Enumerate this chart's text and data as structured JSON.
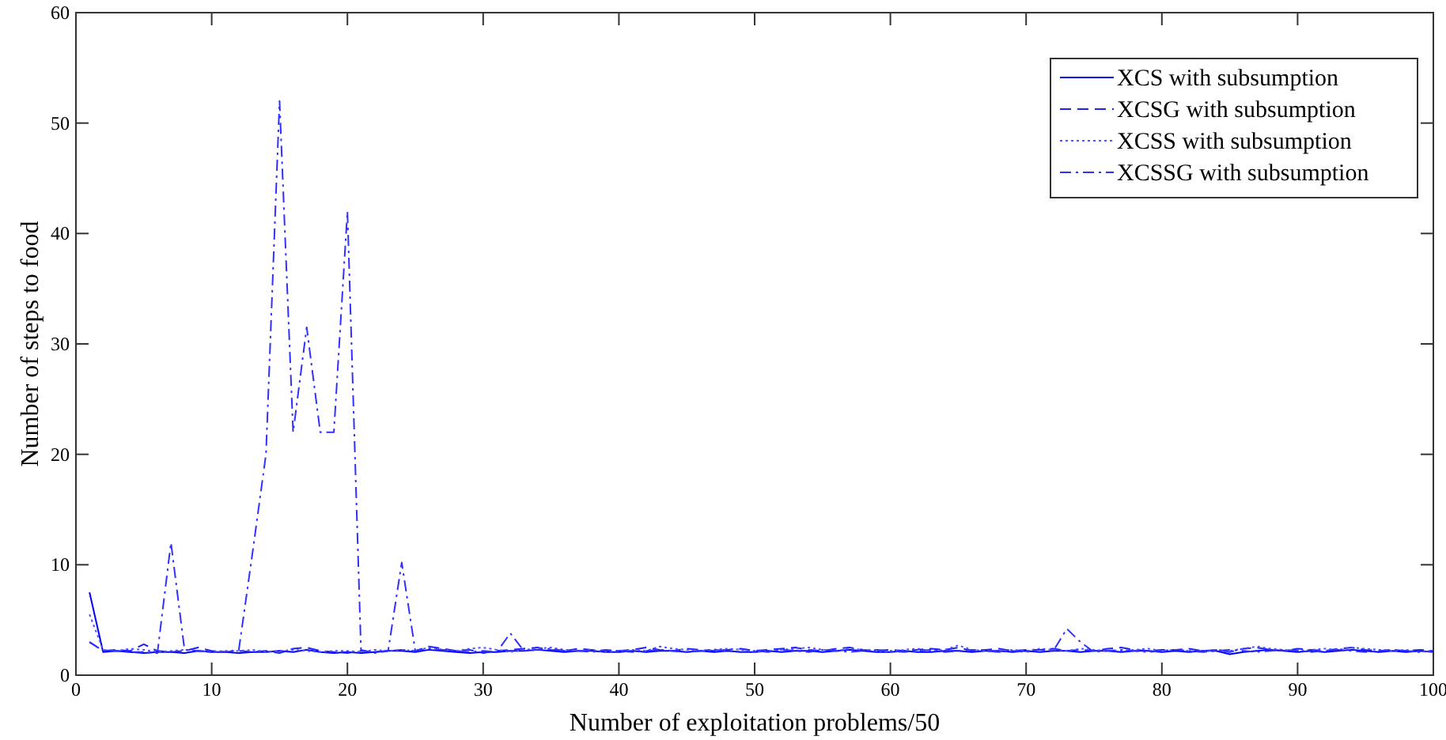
{
  "chart_data": {
    "type": "line",
    "xlabel": "Number of exploitation problems/50",
    "ylabel": "Number of steps to food",
    "x": [
      1,
      2,
      3,
      4,
      5,
      6,
      7,
      8,
      9,
      10,
      11,
      12,
      13,
      14,
      15,
      16,
      17,
      18,
      19,
      20,
      21,
      22,
      23,
      24,
      25,
      26,
      27,
      28,
      29,
      30,
      31,
      32,
      33,
      34,
      35,
      36,
      37,
      38,
      39,
      40,
      41,
      42,
      43,
      44,
      45,
      46,
      47,
      48,
      49,
      50,
      51,
      52,
      53,
      54,
      55,
      56,
      57,
      58,
      59,
      60,
      61,
      62,
      63,
      64,
      65,
      66,
      67,
      68,
      69,
      70,
      71,
      72,
      73,
      74,
      75,
      76,
      77,
      78,
      79,
      80,
      81,
      82,
      83,
      84,
      85,
      86,
      87,
      88,
      89,
      90,
      91,
      92,
      93,
      94,
      95,
      96,
      97,
      98,
      99,
      100
    ],
    "xlim": [
      0,
      100
    ],
    "xticks": [
      0,
      10,
      20,
      30,
      40,
      50,
      60,
      70,
      80,
      90,
      100
    ],
    "ylim": [
      0,
      60
    ],
    "yticks": [
      0,
      10,
      20,
      30,
      40,
      50,
      60
    ],
    "grid": false,
    "legend": "top right",
    "series": [
      {
        "name": "XCS with subsumption",
        "color": "#0000ff",
        "line_style": "solid",
        "values": [
          7.5,
          2.1,
          2.2,
          2.1,
          2.0,
          2.1,
          2.1,
          2.0,
          2.2,
          2.1,
          2.1,
          2.0,
          2.1,
          2.1,
          2.2,
          2.1,
          2.3,
          2.1,
          2.0,
          2.1,
          2.0,
          2.1,
          2.2,
          2.2,
          2.1,
          2.3,
          2.2,
          2.1,
          2.0,
          2.1,
          2.1,
          2.2,
          2.2,
          2.3,
          2.2,
          2.1,
          2.2,
          2.2,
          2.1,
          2.1,
          2.2,
          2.1,
          2.2,
          2.2,
          2.1,
          2.2,
          2.1,
          2.2,
          2.1,
          2.1,
          2.2,
          2.1,
          2.2,
          2.2,
          2.1,
          2.2,
          2.3,
          2.2,
          2.1,
          2.1,
          2.2,
          2.1,
          2.1,
          2.2,
          2.2,
          2.1,
          2.2,
          2.2,
          2.1,
          2.2,
          2.1,
          2.2,
          2.2,
          2.1,
          2.2,
          2.2,
          2.1,
          2.2,
          2.2,
          2.1,
          2.2,
          2.1,
          2.2,
          2.2,
          1.9,
          2.1,
          2.2,
          2.3,
          2.2,
          2.1,
          2.2,
          2.1,
          2.2,
          2.3,
          2.2,
          2.1,
          2.2,
          2.1,
          2.2,
          2.1
        ]
      },
      {
        "name": "XCSG with subsumption",
        "color": "#2020ff",
        "line_style": "dashed",
        "values": [
          3.0,
          2.2,
          2.3,
          2.2,
          2.8,
          2.2,
          2.1,
          2.2,
          2.5,
          2.2,
          2.1,
          2.2,
          2.1,
          2.2,
          2.0,
          2.4,
          2.5,
          2.2,
          2.1,
          2.0,
          2.2,
          2.1,
          2.2,
          2.3,
          2.2,
          2.6,
          2.4,
          2.2,
          2.3,
          2.0,
          2.2,
          2.3,
          2.4,
          2.5,
          2.3,
          2.2,
          2.4,
          2.3,
          2.2,
          2.2,
          2.3,
          2.5,
          2.3,
          2.2,
          2.4,
          2.3,
          2.2,
          2.3,
          2.4,
          2.2,
          2.3,
          2.4,
          2.5,
          2.3,
          2.2,
          2.4,
          2.5,
          2.3,
          2.2,
          2.3,
          2.2,
          2.3,
          2.4,
          2.3,
          2.5,
          2.2,
          2.3,
          2.4,
          2.2,
          2.3,
          2.3,
          2.4,
          2.2,
          2.3,
          2.2,
          2.4,
          2.5,
          2.3,
          2.2,
          2.3,
          2.3,
          2.4,
          2.2,
          2.3,
          2.1,
          2.4,
          2.5,
          2.3,
          2.2,
          2.4,
          2.3,
          2.2,
          2.4,
          2.5,
          2.3,
          2.2,
          2.3,
          2.2,
          2.3,
          2.2
        ]
      },
      {
        "name": "XCSS with subsumption",
        "color": "#5050ff",
        "line_style": "dotted",
        "values": [
          5.5,
          2.3,
          2.2,
          2.4,
          2.3,
          2.1,
          2.2,
          2.3,
          2.2,
          2.1,
          2.2,
          2.2,
          2.3,
          2.1,
          2.2,
          2.3,
          2.2,
          2.1,
          2.2,
          2.2,
          2.1,
          2.3,
          2.2,
          2.3,
          2.2,
          2.5,
          2.3,
          2.2,
          2.4,
          2.5,
          2.3,
          2.1,
          2.3,
          2.4,
          2.5,
          2.3,
          2.2,
          2.3,
          2.1,
          2.2,
          2.3,
          2.2,
          2.6,
          2.4,
          2.3,
          2.2,
          2.3,
          2.4,
          2.3,
          2.1,
          2.2,
          2.3,
          2.4,
          2.5,
          2.3,
          2.2,
          2.4,
          2.3,
          2.2,
          2.1,
          2.3,
          2.4,
          2.2,
          2.3,
          2.7,
          2.3,
          2.2,
          2.1,
          2.3,
          2.2,
          2.4,
          2.3,
          2.2,
          2.4,
          2.3,
          2.2,
          2.2,
          2.3,
          2.4,
          2.2,
          2.3,
          2.2,
          2.1,
          2.3,
          2.2,
          2.4,
          2.6,
          2.4,
          2.3,
          2.2,
          2.3,
          2.4,
          2.3,
          2.5,
          2.4,
          2.3,
          2.2,
          2.3,
          2.1,
          2.2
        ]
      },
      {
        "name": "XCSSG with subsumption",
        "color": "#3030ff",
        "line_style": "dashdot",
        "values": [
          3.0,
          2.2,
          2.2,
          2.1,
          2.1,
          2.0,
          12.0,
          2.3,
          2.2,
          2.1,
          2.1,
          2.3,
          11.0,
          20.0,
          52.0,
          22.0,
          31.5,
          22.0,
          22.0,
          42.0,
          2.3,
          2.0,
          2.2,
          10.2,
          2.2,
          2.4,
          2.3,
          2.2,
          2.1,
          2.2,
          2.1,
          3.8,
          2.2,
          2.3,
          2.4,
          2.2,
          2.2,
          2.1,
          2.3,
          2.2,
          2.1,
          2.2,
          2.3,
          2.2,
          2.1,
          2.2,
          2.3,
          2.2,
          2.1,
          2.2,
          2.1,
          2.3,
          2.2,
          2.1,
          2.3,
          2.2,
          2.1,
          2.2,
          2.3,
          2.2,
          2.1,
          2.2,
          2.3,
          2.1,
          2.2,
          2.3,
          2.2,
          2.1,
          2.2,
          2.1,
          2.3,
          2.2,
          4.2,
          3.0,
          2.1,
          2.2,
          2.3,
          2.2,
          2.1,
          2.2,
          2.3,
          2.2,
          2.1,
          2.2,
          2.3,
          2.2,
          2.1,
          2.2,
          2.3,
          2.2,
          2.1,
          2.2,
          2.3,
          2.2,
          2.1,
          2.2,
          2.3,
          2.2,
          2.1,
          2.2
        ]
      }
    ]
  }
}
